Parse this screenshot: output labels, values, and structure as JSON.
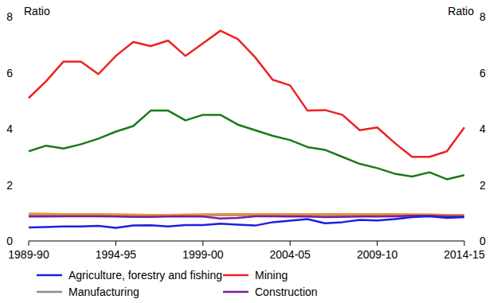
{
  "chart_data": {
    "type": "line",
    "ylabel": "Ratio",
    "y2label": "Ratio",
    "categories": [
      "1989-90",
      null,
      null,
      null,
      null,
      "1994-95",
      null,
      null,
      null,
      null,
      "1999-00",
      null,
      null,
      null,
      null,
      "2004-05",
      null,
      null,
      null,
      null,
      "2009-10",
      null,
      null,
      null,
      null,
      "2014-15"
    ],
    "ylim": [
      0,
      8
    ],
    "yticks": [
      0,
      2,
      4,
      6,
      8
    ],
    "y2lim": [
      0,
      8
    ],
    "y2ticks": [
      0,
      2,
      4,
      6,
      8
    ],
    "grid": false,
    "legend": "bottom",
    "series": [
      {
        "name": "Manufacturing",
        "color": "#8c8c8c",
        "values": [
          0.92,
          0.92,
          0.91,
          0.9,
          0.9,
          0.9,
          0.9,
          0.9,
          0.91,
          0.91,
          0.92,
          0.92,
          0.92,
          0.92,
          0.92,
          0.92,
          0.92,
          0.92,
          0.92,
          0.92,
          0.92,
          0.92,
          0.92,
          0.92,
          0.92,
          0.92
        ]
      },
      {
        "color": "#f28e2b",
        "values": [
          0.98,
          0.97,
          0.96,
          0.96,
          0.96,
          0.95,
          0.94,
          0.93,
          0.93,
          0.94,
          0.95,
          0.96,
          0.96,
          0.96,
          0.96,
          0.96,
          0.96,
          0.96,
          0.96,
          0.96,
          0.96,
          0.96,
          0.95,
          0.95,
          0.93,
          0.92
        ]
      },
      {
        "name": "Construction",
        "color": "#7b1fa2",
        "values": [
          0.87,
          0.87,
          0.88,
          0.88,
          0.88,
          0.87,
          0.86,
          0.86,
          0.87,
          0.88,
          0.87,
          0.8,
          0.82,
          0.88,
          0.88,
          0.87,
          0.87,
          0.85,
          0.86,
          0.87,
          0.87,
          0.88,
          0.9,
          0.9,
          0.88,
          0.88
        ]
      },
      {
        "name": "Agriculture, forestry and fishing",
        "color": "#1f1fe0",
        "values": [
          0.48,
          0.5,
          0.52,
          0.52,
          0.54,
          0.47,
          0.55,
          0.56,
          0.52,
          0.57,
          0.57,
          0.62,
          0.58,
          0.55,
          0.67,
          0.72,
          0.78,
          0.63,
          0.67,
          0.75,
          0.73,
          0.78,
          0.85,
          0.88,
          0.82,
          0.85
        ]
      },
      {
        "color": "#1a7a1a",
        "values": [
          3.2,
          3.4,
          3.3,
          3.45,
          3.65,
          3.9,
          4.1,
          4.65,
          4.65,
          4.3,
          4.5,
          4.5,
          4.15,
          3.95,
          3.75,
          3.6,
          3.35,
          3.25,
          3.0,
          2.75,
          2.6,
          2.4,
          2.3,
          2.45,
          2.2,
          2.35
        ]
      },
      {
        "name": "Mining",
        "color": "#ee2222",
        "values": [
          5.1,
          5.7,
          6.4,
          6.4,
          5.95,
          6.6,
          7.1,
          6.95,
          7.15,
          6.6,
          7.05,
          7.5,
          7.2,
          6.55,
          5.75,
          5.55,
          4.65,
          4.67,
          4.5,
          3.95,
          4.05,
          3.5,
          3.0,
          3.0,
          3.2,
          4.05
        ]
      }
    ]
  }
}
